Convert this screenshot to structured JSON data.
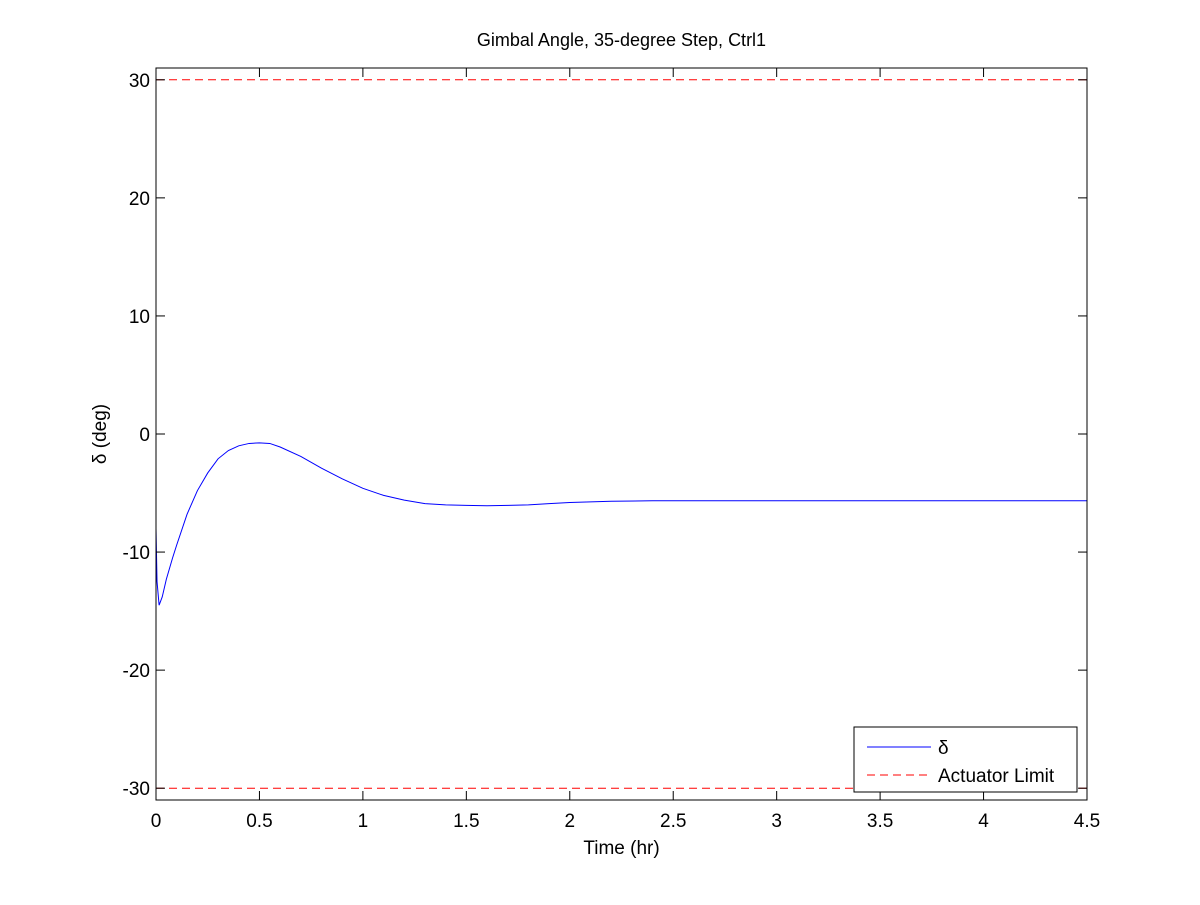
{
  "chart_data": {
    "type": "line",
    "title": "Gimbal Angle, 35-degree Step, Ctrl1",
    "xlabel": "Time (hr)",
    "ylabel": "δ (deg)",
    "xlim": [
      0,
      4.5
    ],
    "ylim": [
      -31,
      31
    ],
    "xticks": [
      0,
      0.5,
      1,
      1.5,
      2,
      2.5,
      3,
      3.5,
      4,
      4.5
    ],
    "xtick_labels": [
      "0",
      "0.5",
      "1",
      "1.5",
      "2",
      "2.5",
      "3",
      "3.5",
      "4",
      "4.5"
    ],
    "yticks": [
      -30,
      -20,
      -10,
      0,
      10,
      20,
      30
    ],
    "ytick_labels": [
      "-30",
      "-20",
      "-10",
      "0",
      "10",
      "20",
      "30"
    ],
    "grid": false,
    "legend_position": "bottom-right",
    "series": [
      {
        "name": "δ",
        "color": "#0000ff",
        "style": "solid",
        "x": [
          0,
          0.005,
          0.015,
          0.03,
          0.05,
          0.08,
          0.1,
          0.15,
          0.2,
          0.25,
          0.3,
          0.35,
          0.4,
          0.45,
          0.5,
          0.55,
          0.6,
          0.7,
          0.8,
          0.9,
          1.0,
          1.1,
          1.2,
          1.3,
          1.4,
          1.5,
          1.6,
          1.7,
          1.8,
          1.9,
          2.0,
          2.2,
          2.4,
          2.6,
          3.0,
          3.5,
          4.0,
          4.5
        ],
        "y": [
          -8.0,
          -12.5,
          -14.5,
          -13.8,
          -12.3,
          -10.5,
          -9.4,
          -6.8,
          -4.8,
          -3.3,
          -2.1,
          -1.4,
          -1.0,
          -0.8,
          -0.75,
          -0.8,
          -1.1,
          -1.9,
          -2.9,
          -3.8,
          -4.6,
          -5.2,
          -5.6,
          -5.9,
          -6.0,
          -6.05,
          -6.08,
          -6.05,
          -6.0,
          -5.9,
          -5.8,
          -5.7,
          -5.65,
          -5.65,
          -5.65,
          -5.65,
          -5.65,
          -5.65
        ]
      },
      {
        "name": "Actuator Limit",
        "color": "#ff0000",
        "style": "dashed",
        "x": [
          0,
          4.5
        ],
        "y": [
          30,
          30
        ]
      },
      {
        "name": "",
        "color": "#ff0000",
        "style": "dashed",
        "x": [
          0,
          4.5
        ],
        "y": [
          -30,
          -30
        ]
      }
    ],
    "legend": [
      {
        "label": "δ",
        "color": "#0000ff",
        "style": "solid"
      },
      {
        "label": "Actuator Limit",
        "color": "#ff0000",
        "style": "dashed"
      }
    ]
  }
}
